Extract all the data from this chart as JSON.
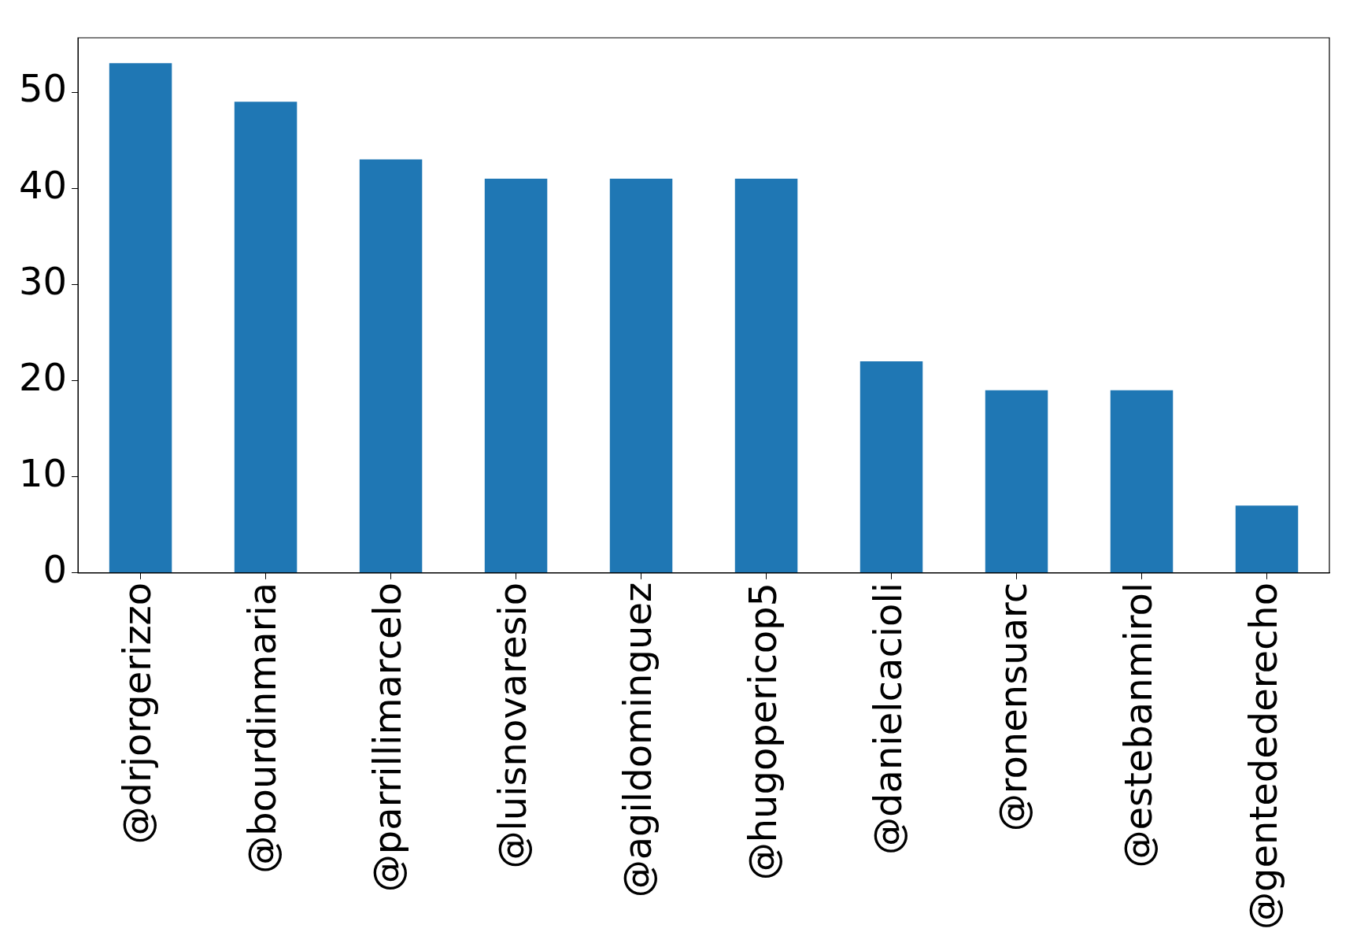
{
  "chart_data": {
    "type": "bar",
    "categories": [
      "@drjorgerizzo",
      "@bourdinmaria",
      "@parrillimarcelo",
      "@luisnovaresio",
      "@agildominguez",
      "@hugopericop5",
      "@danielcacioli",
      "@ronensuarc",
      "@estebanmirol",
      "@gentedederecho"
    ],
    "values": [
      53,
      49,
      43,
      41,
      41,
      41,
      22,
      19,
      19,
      7
    ],
    "color": "#1f77b4",
    "ylim": [
      0,
      55.65
    ],
    "yticks": [
      0,
      10,
      20,
      30,
      40,
      50
    ],
    "grid": false,
    "legend": false
  }
}
